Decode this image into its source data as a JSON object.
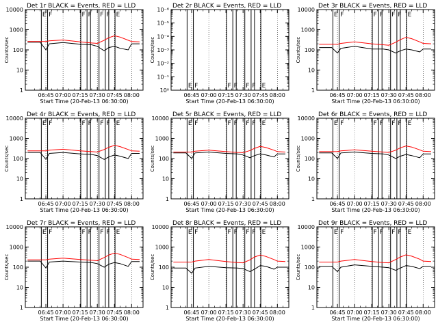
{
  "colors": {
    "events": "#000000",
    "lld": "#ff0000",
    "axes": "#000000",
    "background": "#ffffff"
  },
  "shared": {
    "xlabel": "Start Time (20-Feb-13 06:30:00)",
    "ylabel": "Counts/sec",
    "x_tick_labels": [
      "06:45",
      "07:00",
      "07:15",
      "07:30",
      "07:45",
      "08:00"
    ],
    "x_tick_minutes": [
      45,
      60,
      75,
      90,
      105,
      120
    ],
    "xlim_minutes": [
      27,
      130
    ],
    "flag_markers_minutes": [
      {
        "t": 41,
        "label": "E"
      },
      {
        "t": 46.5,
        "label": "F"
      },
      {
        "t": 75.5,
        "label": "F"
      },
      {
        "t": 81,
        "label": "F"
      },
      {
        "t": 84,
        "label": ""
      },
      {
        "t": 91.5,
        "label": "F"
      },
      {
        "t": 97,
        "label": "F"
      },
      {
        "t": 100,
        "label": ""
      },
      {
        "t": 105.5,
        "label": "E"
      }
    ]
  },
  "chart_data": [
    {
      "type": "line",
      "title": "Det 1r  BLACK = Events, RED = LLD",
      "ylog": true,
      "ylim": [
        1,
        10000
      ],
      "y_tick_labels": [
        "1",
        "10",
        "100",
        "1000",
        "10000"
      ],
      "x": [
        29,
        40,
        45,
        48,
        60,
        75,
        85,
        90,
        96,
        100,
        105,
        110,
        117,
        120,
        127
      ],
      "series": [
        {
          "name": "Events",
          "color": "#000000",
          "values": [
            240,
            240,
            100,
            200,
            230,
            190,
            180,
            150,
            90,
            130,
            150,
            120,
            100,
            200,
            200
          ]
        },
        {
          "name": "LLD",
          "color": "#ff0000",
          "values": [
            260,
            260,
            260,
            280,
            310,
            250,
            220,
            210,
            300,
            400,
            500,
            430,
            300,
            260,
            250
          ]
        }
      ]
    },
    {
      "type": "line",
      "title": "Det 2r  BLACK = Events, RED = LLD",
      "ylog": true,
      "ylim": [
        1,
        1e-06
      ],
      "y_tick_labels": [
        "10⁰",
        "10⁻¹",
        "10⁻²",
        "10⁻³",
        "10⁻⁴",
        "10⁻⁵",
        "10⁻⁶"
      ],
      "x": [],
      "series": []
    },
    {
      "type": "line",
      "title": "Det 3r  BLACK = Events, RED = LLD",
      "ylog": true,
      "ylim": [
        1,
        10000
      ],
      "y_tick_labels": [
        "1",
        "10",
        "100",
        "1000",
        "10000"
      ],
      "x": [
        29,
        40,
        45,
        48,
        60,
        75,
        85,
        90,
        96,
        100,
        105,
        110,
        117,
        120,
        127
      ],
      "series": [
        {
          "name": "Events",
          "color": "#000000",
          "values": [
            130,
            130,
            70,
            120,
            150,
            110,
            110,
            100,
            70,
            90,
            110,
            100,
            80,
            110,
            110
          ]
        },
        {
          "name": "LLD",
          "color": "#ff0000",
          "values": [
            190,
            190,
            190,
            210,
            250,
            200,
            180,
            170,
            240,
            320,
            420,
            360,
            250,
            210,
            200
          ]
        }
      ]
    },
    {
      "type": "line",
      "title": "Det 4r  BLACK = Events, RED = LLD",
      "ylog": true,
      "ylim": [
        1,
        10000
      ],
      "y_tick_labels": [
        "1",
        "10",
        "100",
        "1000",
        "10000"
      ],
      "x": [
        29,
        40,
        45,
        48,
        60,
        75,
        85,
        90,
        96,
        100,
        105,
        110,
        117,
        120,
        127
      ],
      "series": [
        {
          "name": "Events",
          "color": "#000000",
          "values": [
            200,
            200,
            90,
            180,
            200,
            170,
            160,
            140,
            90,
            120,
            150,
            130,
            100,
            180,
            180
          ]
        },
        {
          "name": "LLD",
          "color": "#ff0000",
          "values": [
            240,
            240,
            240,
            260,
            290,
            240,
            220,
            210,
            280,
            360,
            450,
            390,
            280,
            240,
            230
          ]
        }
      ]
    },
    {
      "type": "line",
      "title": "Det 5r  BLACK = Events, RED = LLD",
      "ylog": true,
      "ylim": [
        1,
        10000
      ],
      "y_tick_labels": [
        "1",
        "10",
        "100",
        "1000",
        "10000"
      ],
      "x": [
        29,
        40,
        45,
        48,
        60,
        75,
        85,
        90,
        96,
        100,
        105,
        110,
        117,
        120,
        127
      ],
      "series": [
        {
          "name": "Events",
          "color": "#000000",
          "values": [
            190,
            190,
            100,
            190,
            210,
            180,
            170,
            150,
            110,
            140,
            170,
            150,
            120,
            170,
            170
          ]
        },
        {
          "name": "LLD",
          "color": "#ff0000",
          "values": [
            210,
            210,
            210,
            230,
            260,
            220,
            200,
            195,
            250,
            320,
            400,
            350,
            260,
            220,
            210
          ]
        }
      ]
    },
    {
      "type": "line",
      "title": "Det 6r  BLACK = Events, RED = LLD",
      "ylog": true,
      "ylim": [
        1,
        10000
      ],
      "y_tick_labels": [
        "1",
        "10",
        "100",
        "1000",
        "10000"
      ],
      "x": [
        29,
        40,
        45,
        48,
        60,
        75,
        85,
        90,
        96,
        100,
        105,
        110,
        117,
        120,
        127
      ],
      "series": [
        {
          "name": "Events",
          "color": "#000000",
          "values": [
            190,
            190,
            100,
            190,
            210,
            180,
            170,
            150,
            100,
            130,
            160,
            140,
            110,
            170,
            170
          ]
        },
        {
          "name": "LLD",
          "color": "#ff0000",
          "values": [
            220,
            220,
            220,
            240,
            270,
            230,
            210,
            200,
            260,
            340,
            420,
            370,
            270,
            230,
            220
          ]
        }
      ]
    },
    {
      "type": "line",
      "title": "Det 7r  BLACK = Events, RED = LLD",
      "ylog": true,
      "ylim": [
        1,
        10000
      ],
      "y_tick_labels": [
        "1",
        "10",
        "100",
        "1000",
        "10000"
      ],
      "x": [
        29,
        40,
        45,
        48,
        60,
        75,
        85,
        90,
        96,
        100,
        105,
        110,
        117,
        120,
        127
      ],
      "series": [
        {
          "name": "Events",
          "color": "#000000",
          "values": [
            200,
            200,
            90,
            180,
            200,
            180,
            170,
            150,
            100,
            140,
            170,
            150,
            110,
            190,
            190
          ]
        },
        {
          "name": "LLD",
          "color": "#ff0000",
          "values": [
            230,
            230,
            230,
            250,
            280,
            240,
            220,
            210,
            300,
            400,
            500,
            430,
            300,
            250,
            240
          ]
        }
      ]
    },
    {
      "type": "line",
      "title": "Det 8r  BLACK = Events, RED = LLD",
      "ylog": true,
      "ylim": [
        1,
        10000
      ],
      "y_tick_labels": [
        "1",
        "10",
        "100",
        "1000",
        "10000"
      ],
      "x": [
        29,
        40,
        45,
        48,
        60,
        75,
        85,
        90,
        96,
        100,
        105,
        110,
        117,
        120,
        127
      ],
      "series": [
        {
          "name": "Events",
          "color": "#000000",
          "values": [
            90,
            90,
            50,
            90,
            110,
            95,
            90,
            85,
            60,
            80,
            120,
            110,
            80,
            100,
            100
          ]
        },
        {
          "name": "LLD",
          "color": "#ff0000",
          "values": [
            180,
            180,
            180,
            200,
            240,
            190,
            170,
            165,
            230,
            320,
            400,
            340,
            240,
            200,
            190
          ]
        }
      ]
    },
    {
      "type": "line",
      "title": "Det 9r  BLACK = Events, RED = LLD",
      "ylog": true,
      "ylim": [
        1,
        10000
      ],
      "y_tick_labels": [
        "1",
        "10",
        "100",
        "1000",
        "10000"
      ],
      "x": [
        29,
        40,
        45,
        48,
        60,
        75,
        85,
        90,
        96,
        100,
        105,
        110,
        117,
        120,
        127
      ],
      "series": [
        {
          "name": "Events",
          "color": "#000000",
          "values": [
            110,
            110,
            60,
            100,
            130,
            110,
            100,
            95,
            70,
            90,
            120,
            110,
            85,
            110,
            110
          ]
        },
        {
          "name": "LLD",
          "color": "#ff0000",
          "values": [
            180,
            180,
            180,
            200,
            240,
            190,
            170,
            165,
            240,
            320,
            410,
            350,
            250,
            200,
            190
          ]
        }
      ]
    }
  ]
}
